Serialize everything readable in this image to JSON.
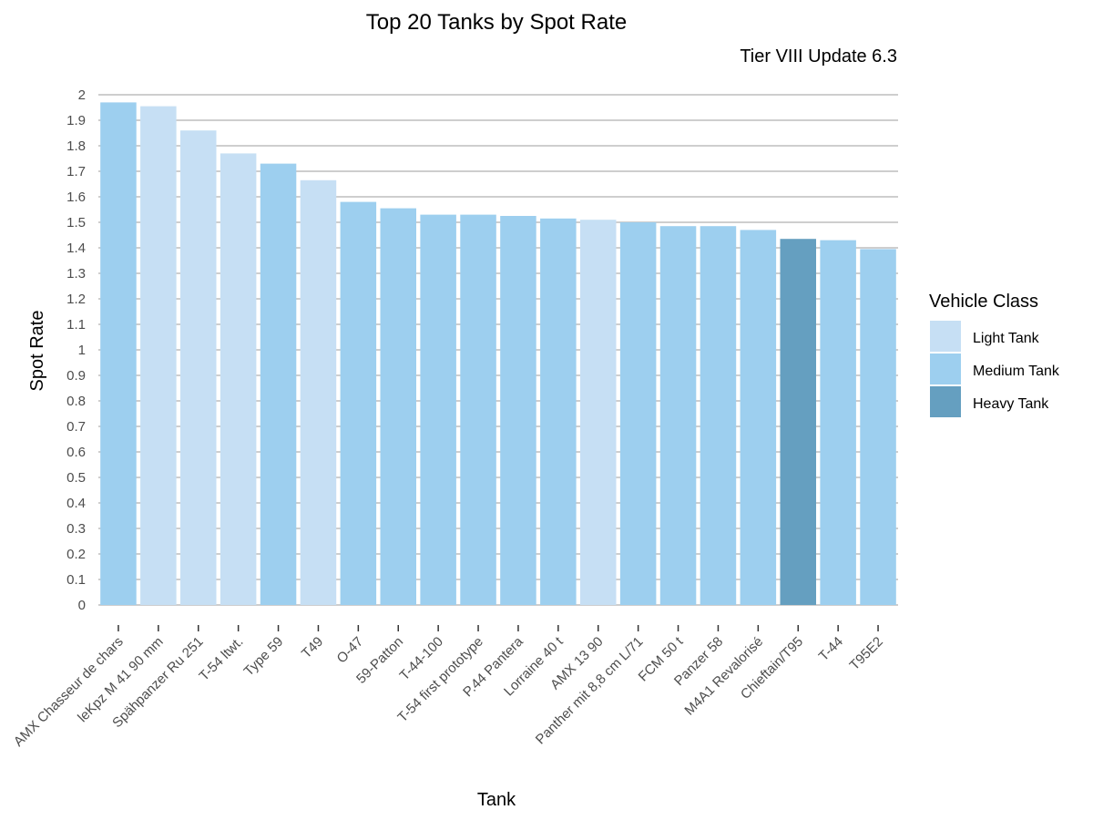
{
  "chart_data": {
    "type": "bar",
    "title": "Top 20 Tanks by Spot Rate",
    "subtitle": "Tier VIII Update 6.3",
    "xlabel": "Tank",
    "ylabel": "Spot Rate",
    "ylim": [
      0,
      2
    ],
    "yticks": [
      "0",
      "0.1",
      "0.2",
      "0.3",
      "0.4",
      "0.5",
      "0.6",
      "0.7",
      "0.8",
      "0.9",
      "1",
      "1.1",
      "1.2",
      "1.3",
      "1.4",
      "1.5",
      "1.6",
      "1.7",
      "1.8",
      "1.9",
      "2"
    ],
    "grid": "horizontal",
    "legend": {
      "title": "Vehicle Class",
      "position": "right",
      "entries": [
        {
          "name": "Light Tank",
          "color": "#c6dff4"
        },
        {
          "name": "Medium Tank",
          "color": "#9dcfef"
        },
        {
          "name": "Heavy Tank",
          "color": "#659fc0"
        }
      ]
    },
    "categories": [
      "AMX Chasseur de chars",
      "leKpz M 41 90 mm",
      "Spähpanzer Ru 251",
      "T-54 ltwt.",
      "Type 59",
      "T49",
      "O-47",
      "59-Patton",
      "T-44-100",
      "T-54 first prototype",
      "P.44 Pantera",
      "Lorraine 40 t",
      "AMX 13 90",
      "Panther mit 8,8 cm L/71",
      "FCM 50 t",
      "Panzer 58",
      "M4A1 Revalorisé",
      "Chieftain/T95",
      "T-44",
      "T95E2"
    ],
    "values": [
      1.97,
      1.955,
      1.86,
      1.77,
      1.73,
      1.665,
      1.58,
      1.555,
      1.53,
      1.53,
      1.525,
      1.515,
      1.51,
      1.5,
      1.485,
      1.485,
      1.47,
      1.435,
      1.43,
      1.395
    ],
    "classes": [
      "Medium Tank",
      "Light Tank",
      "Light Tank",
      "Light Tank",
      "Medium Tank",
      "Light Tank",
      "Medium Tank",
      "Medium Tank",
      "Medium Tank",
      "Medium Tank",
      "Medium Tank",
      "Medium Tank",
      "Light Tank",
      "Medium Tank",
      "Medium Tank",
      "Medium Tank",
      "Medium Tank",
      "Heavy Tank",
      "Medium Tank",
      "Medium Tank"
    ],
    "colors": {
      "grid": "#bebebe",
      "axis_text": "#4d4d4d"
    }
  }
}
